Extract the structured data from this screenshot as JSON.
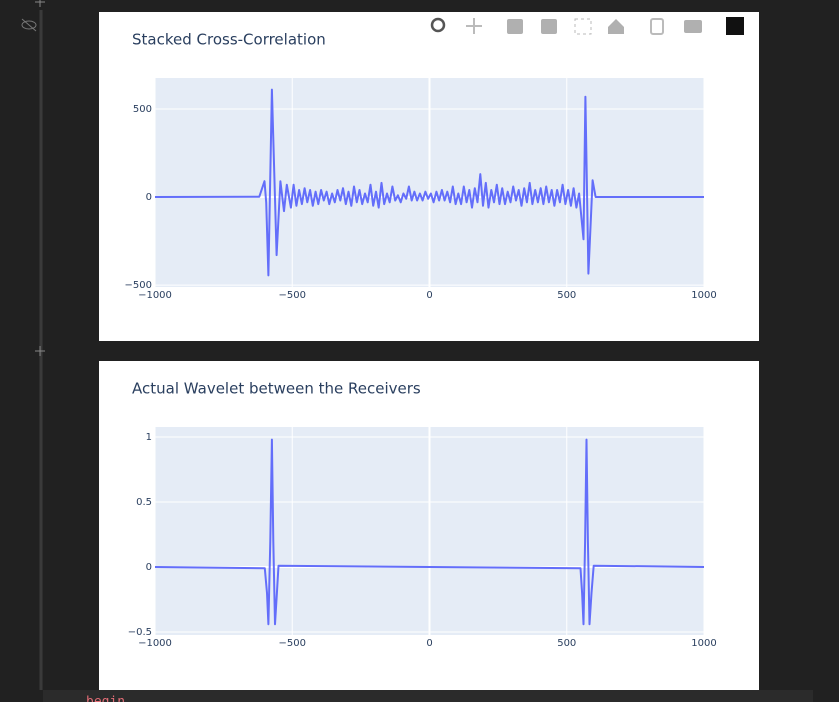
{
  "chart_data": [
    {
      "type": "line",
      "title": "Stacked Cross-Correlation",
      "x": [
        -1000,
        -620,
        -601,
        -595,
        -587,
        -574,
        -557,
        -543,
        -530,
        -520,
        -505,
        -495,
        -485,
        -475,
        -465,
        -455,
        -445,
        -435,
        -425,
        -415,
        -405,
        -395,
        -385,
        -375,
        -365,
        -355,
        -345,
        -335,
        -325,
        -315,
        -305,
        -295,
        -285,
        -275,
        -265,
        -255,
        -245,
        -235,
        -225,
        -215,
        -205,
        -195,
        -185,
        -175,
        -165,
        -155,
        -145,
        -135,
        -125,
        -115,
        -105,
        -95,
        -85,
        -75,
        -65,
        -55,
        -45,
        -35,
        -25,
        -15,
        -5,
        5,
        15,
        25,
        35,
        45,
        55,
        65,
        75,
        85,
        95,
        105,
        115,
        125,
        135,
        145,
        155,
        165,
        175,
        185,
        195,
        205,
        215,
        225,
        235,
        245,
        255,
        265,
        275,
        285,
        295,
        305,
        315,
        325,
        335,
        345,
        355,
        365,
        375,
        385,
        395,
        405,
        415,
        425,
        435,
        445,
        455,
        465,
        475,
        485,
        495,
        505,
        515,
        525,
        535,
        545,
        561,
        568,
        579,
        594,
        605,
        1000
      ],
      "series": [
        {
          "color": "#636efa",
          "values": [
            0,
            2,
            90,
            -30,
            -445,
            610,
            -330,
            90,
            -80,
            70,
            -60,
            70,
            -50,
            40,
            -40,
            50,
            -30,
            40,
            -50,
            30,
            -40,
            40,
            -20,
            30,
            -40,
            20,
            -30,
            40,
            -20,
            50,
            -40,
            30,
            -50,
            60,
            -30,
            40,
            -40,
            20,
            -30,
            70,
            -50,
            30,
            -60,
            80,
            -40,
            20,
            -30,
            60,
            -20,
            10,
            -30,
            20,
            -10,
            60,
            -20,
            30,
            -20,
            20,
            -20,
            30,
            -10,
            20,
            -30,
            30,
            -20,
            40,
            -20,
            30,
            -30,
            60,
            -40,
            20,
            -40,
            60,
            -30,
            40,
            -60,
            50,
            -30,
            130,
            -50,
            80,
            -60,
            40,
            -30,
            70,
            -40,
            50,
            -40,
            30,
            -30,
            60,
            -20,
            40,
            -50,
            50,
            -30,
            80,
            -40,
            40,
            -30,
            50,
            -40,
            60,
            -30,
            40,
            -50,
            40,
            -30,
            70,
            -40,
            40,
            -50,
            50,
            -60,
            20,
            -240,
            570,
            -435,
            95,
            0,
            0
          ]
        }
      ],
      "xlim": [
        -1000,
        1000
      ],
      "ylim": [
        -511,
        676
      ],
      "xticks": [
        {
          "value": -1000,
          "label": "−1000"
        },
        {
          "value": -500,
          "label": "−500"
        },
        0,
        500,
        1000
      ],
      "yticks": [
        {
          "value": -500,
          "label": "−500"
        },
        0,
        500
      ],
      "grid": true
    },
    {
      "type": "line",
      "title": "Actual Wavelet between the Receivers",
      "x": [
        -1000,
        -600,
        -592,
        -587,
        -580,
        -574,
        -569,
        -563,
        -556,
        -550,
        0,
        550,
        556,
        561,
        567,
        572,
        577,
        583,
        590,
        598,
        1000
      ],
      "series": [
        {
          "color": "#636efa",
          "values": [
            0,
            -0.01,
            -0.2,
            -0.44,
            0.2,
            0.98,
            0.2,
            -0.44,
            -0.2,
            0.01,
            0,
            -0.01,
            -0.2,
            -0.44,
            0.2,
            0.98,
            0.2,
            -0.44,
            -0.2,
            0.01,
            0
          ]
        }
      ],
      "xlim": [
        -1000,
        1000
      ],
      "ylim": [
        -0.523,
        1.077
      ],
      "xticks": [
        {
          "value": -1000,
          "label": "−1000"
        },
        {
          "value": -500,
          "label": "−500"
        },
        0,
        500,
        1000
      ],
      "yticks": [
        {
          "value": -0.5,
          "label": "−0.5"
        },
        0,
        0.5,
        1
      ],
      "grid": true
    }
  ],
  "code": "begin"
}
